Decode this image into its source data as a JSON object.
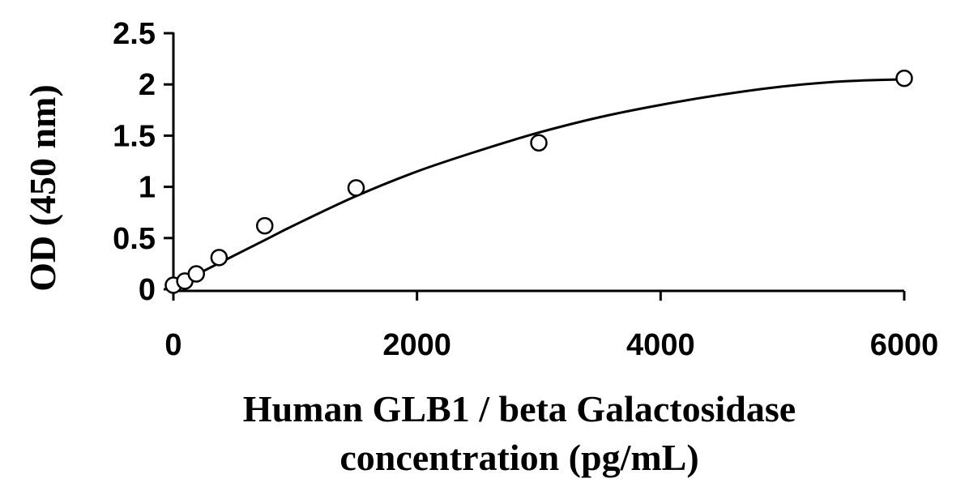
{
  "chart_data": {
    "type": "scatter",
    "xlabel_lines": [
      "Human GLB1 / beta Galactosidase",
      "concentration (pg/mL)"
    ],
    "ylabel": "OD (450 nm)",
    "xlim": [
      0,
      6000
    ],
    "ylim": [
      0,
      2.5
    ],
    "x_ticks": [
      0,
      2000,
      4000,
      6000
    ],
    "x_tick_labels": [
      "0",
      "2000",
      "4000",
      "6000"
    ],
    "y_ticks": [
      0,
      0.5,
      1,
      1.5,
      2,
      2.5
    ],
    "y_tick_labels": [
      "0",
      "0.5",
      "1",
      "1.5",
      "2",
      "2.5"
    ],
    "grid": false,
    "legend": "none",
    "series": [
      {
        "marker": "open-circle",
        "x": [
          0,
          94,
          188,
          375,
          750,
          1500,
          3000,
          6000
        ],
        "y": [
          0.04,
          0.08,
          0.15,
          0.31,
          0.62,
          0.99,
          1.43,
          2.06
        ]
      }
    ],
    "fit_curve": {
      "x": [
        0,
        100,
        200,
        400,
        750,
        1000,
        1500,
        2000,
        2500,
        3000,
        3500,
        4000,
        4500,
        5000,
        5500,
        6000
      ],
      "y": [
        0.04,
        0.09,
        0.15,
        0.27,
        0.48,
        0.63,
        0.91,
        1.15,
        1.35,
        1.53,
        1.68,
        1.8,
        1.9,
        1.98,
        2.03,
        2.05
      ]
    }
  }
}
